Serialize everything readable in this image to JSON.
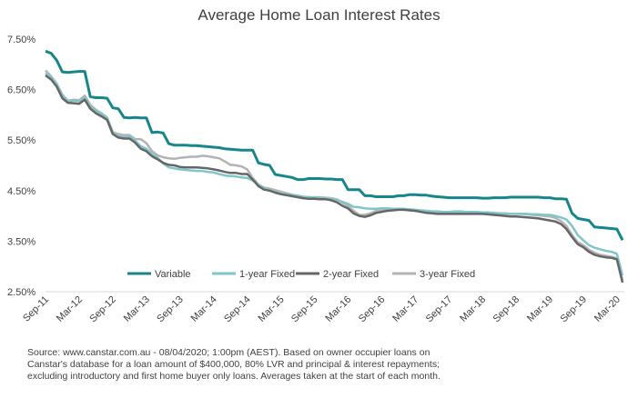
{
  "chart_data": {
    "type": "line",
    "title": "Average Home Loan Interest Rates",
    "xlabel": "",
    "ylabel": "",
    "ylim": [
      2.5,
      7.5
    ],
    "y_ticks": [
      "7.50%",
      "6.50%",
      "5.50%",
      "4.50%",
      "3.50%",
      "2.50%"
    ],
    "y_tick_values": [
      7.5,
      6.5,
      5.5,
      4.5,
      3.5,
      2.5
    ],
    "x_tick_labels": [
      "Sep-11",
      "Mar-12",
      "Sep-12",
      "Mar-13",
      "Sep-13",
      "Mar-14",
      "Sep-14",
      "Mar-15",
      "Sep-15",
      "Mar-16",
      "Sep-16",
      "Mar-17",
      "Sep-17",
      "Mar-18",
      "Sep-18",
      "Mar-19",
      "Sep-19",
      "Mar-20"
    ],
    "x_start": "Sep-11",
    "x_end": "Apr-20",
    "grid": false,
    "legend_position": "bottom-center",
    "series": [
      {
        "name": "Variable",
        "color": "#17868b",
        "values": [
          7.26,
          7.22,
          7.08,
          6.85,
          6.84,
          6.85,
          6.86,
          6.86,
          6.36,
          6.34,
          6.34,
          6.33,
          6.14,
          6.12,
          5.95,
          5.94,
          5.95,
          5.94,
          5.94,
          5.65,
          5.66,
          5.64,
          5.43,
          5.4,
          5.4,
          5.4,
          5.39,
          5.39,
          5.38,
          5.37,
          5.36,
          5.35,
          5.33,
          5.32,
          5.31,
          5.3,
          5.3,
          5.3,
          5.05,
          5.02,
          5.0,
          4.82,
          4.8,
          4.78,
          4.76,
          4.72,
          4.72,
          4.74,
          4.74,
          4.74,
          4.73,
          4.73,
          4.72,
          4.72,
          4.52,
          4.52,
          4.52,
          4.4,
          4.4,
          4.38,
          4.38,
          4.38,
          4.38,
          4.4,
          4.4,
          4.42,
          4.42,
          4.41,
          4.41,
          4.39,
          4.38,
          4.37,
          4.36,
          4.36,
          4.36,
          4.36,
          4.36,
          4.36,
          4.35,
          4.35,
          4.36,
          4.36,
          4.36,
          4.37,
          4.37,
          4.37,
          4.37,
          4.37,
          4.37,
          4.36,
          4.36,
          4.34,
          4.34,
          4.33,
          4.05,
          3.95,
          3.93,
          3.91,
          3.78,
          3.77,
          3.76,
          3.75,
          3.74,
          3.52
        ]
      },
      {
        "name": "1-year Fixed",
        "color": "#7fc6cc",
        "values": [
          6.82,
          6.74,
          6.6,
          6.38,
          6.27,
          6.28,
          6.27,
          6.34,
          6.16,
          6.07,
          6.02,
          5.93,
          5.64,
          5.58,
          5.56,
          5.57,
          5.49,
          5.38,
          5.33,
          5.22,
          5.15,
          5.04,
          4.96,
          4.94,
          4.92,
          4.91,
          4.9,
          4.89,
          4.89,
          4.87,
          4.86,
          4.83,
          4.8,
          4.79,
          4.78,
          4.76,
          4.75,
          4.7,
          4.62,
          4.55,
          4.51,
          4.47,
          4.44,
          4.43,
          4.41,
          4.4,
          4.38,
          4.37,
          4.36,
          4.35,
          4.35,
          4.33,
          4.32,
          4.28,
          4.24,
          4.18,
          4.17,
          4.15,
          4.14,
          4.14,
          4.15,
          4.15,
          4.14,
          4.14,
          4.14,
          4.13,
          4.12,
          4.11,
          4.1,
          4.09,
          4.09,
          4.08,
          4.08,
          4.09,
          4.09,
          4.08,
          4.08,
          4.08,
          4.07,
          4.07,
          4.06,
          4.05,
          4.05,
          4.04,
          4.04,
          4.04,
          4.04,
          4.03,
          4.03,
          4.02,
          4.02,
          4.0,
          3.97,
          3.93,
          3.8,
          3.62,
          3.52,
          3.42,
          3.37,
          3.34,
          3.31,
          3.29,
          3.25,
          2.82
        ]
      },
      {
        "name": "2-year Fixed",
        "color": "#666666",
        "values": [
          6.78,
          6.7,
          6.56,
          6.33,
          6.24,
          6.23,
          6.22,
          6.3,
          6.12,
          6.03,
          5.97,
          5.9,
          5.62,
          5.55,
          5.53,
          5.53,
          5.45,
          5.33,
          5.28,
          5.18,
          5.12,
          5.05,
          5.01,
          5.0,
          4.97,
          4.96,
          4.96,
          4.96,
          4.95,
          4.94,
          4.92,
          4.9,
          4.87,
          4.85,
          4.85,
          4.83,
          4.83,
          4.72,
          4.59,
          4.52,
          4.5,
          4.46,
          4.43,
          4.41,
          4.39,
          4.37,
          4.35,
          4.34,
          4.34,
          4.33,
          4.33,
          4.31,
          4.27,
          4.2,
          4.15,
          4.05,
          4.0,
          3.98,
          4.01,
          4.06,
          4.08,
          4.1,
          4.11,
          4.12,
          4.12,
          4.11,
          4.1,
          4.08,
          4.06,
          4.05,
          4.04,
          4.04,
          4.04,
          4.04,
          4.04,
          4.04,
          4.04,
          4.04,
          4.04,
          4.03,
          4.02,
          4.01,
          4.0,
          3.99,
          3.99,
          3.98,
          3.97,
          3.96,
          3.95,
          3.93,
          3.91,
          3.89,
          3.84,
          3.74,
          3.58,
          3.44,
          3.38,
          3.29,
          3.23,
          3.2,
          3.18,
          3.17,
          3.14,
          2.68
        ]
      },
      {
        "name": "3-year Fixed",
        "color": "#b3b3b3",
        "values": [
          6.88,
          6.76,
          6.62,
          6.4,
          6.28,
          6.3,
          6.29,
          6.38,
          6.2,
          6.1,
          6.03,
          5.95,
          5.66,
          5.62,
          5.6,
          5.6,
          5.52,
          5.52,
          5.44,
          5.28,
          5.2,
          5.16,
          5.14,
          5.13,
          5.15,
          5.16,
          5.17,
          5.17,
          5.19,
          5.18,
          5.16,
          5.14,
          5.08,
          5.01,
          5.0,
          4.98,
          4.92,
          4.75,
          4.62,
          4.56,
          4.54,
          4.51,
          4.48,
          4.45,
          4.42,
          4.4,
          4.38,
          4.37,
          4.37,
          4.37,
          4.36,
          4.35,
          4.33,
          4.26,
          4.2,
          4.1,
          4.02,
          4.02,
          4.05,
          4.1,
          4.11,
          4.12,
          4.14,
          4.14,
          4.13,
          4.12,
          4.1,
          4.09,
          4.08,
          4.08,
          4.07,
          4.07,
          4.07,
          4.08,
          4.08,
          4.08,
          4.08,
          4.07,
          4.07,
          4.06,
          4.05,
          4.04,
          4.04,
          4.04,
          4.04,
          4.04,
          4.03,
          4.02,
          4.01,
          4.0,
          3.99,
          3.96,
          3.9,
          3.8,
          3.62,
          3.48,
          3.42,
          3.33,
          3.27,
          3.23,
          3.21,
          3.19,
          3.16,
          2.72
        ]
      }
    ]
  },
  "source_note": {
    "line1": "Source:  www.canstar.com.au - 08/04/2020; 1:00pm (AEST).  Based on owner occupier loans on",
    "line2": "Canstar's database for a loan amount of $400,000, 80% LVR and principal & interest repayments;",
    "line3": "excluding introductory and first home buyer only loans.  Averages taken at the start of each month."
  }
}
